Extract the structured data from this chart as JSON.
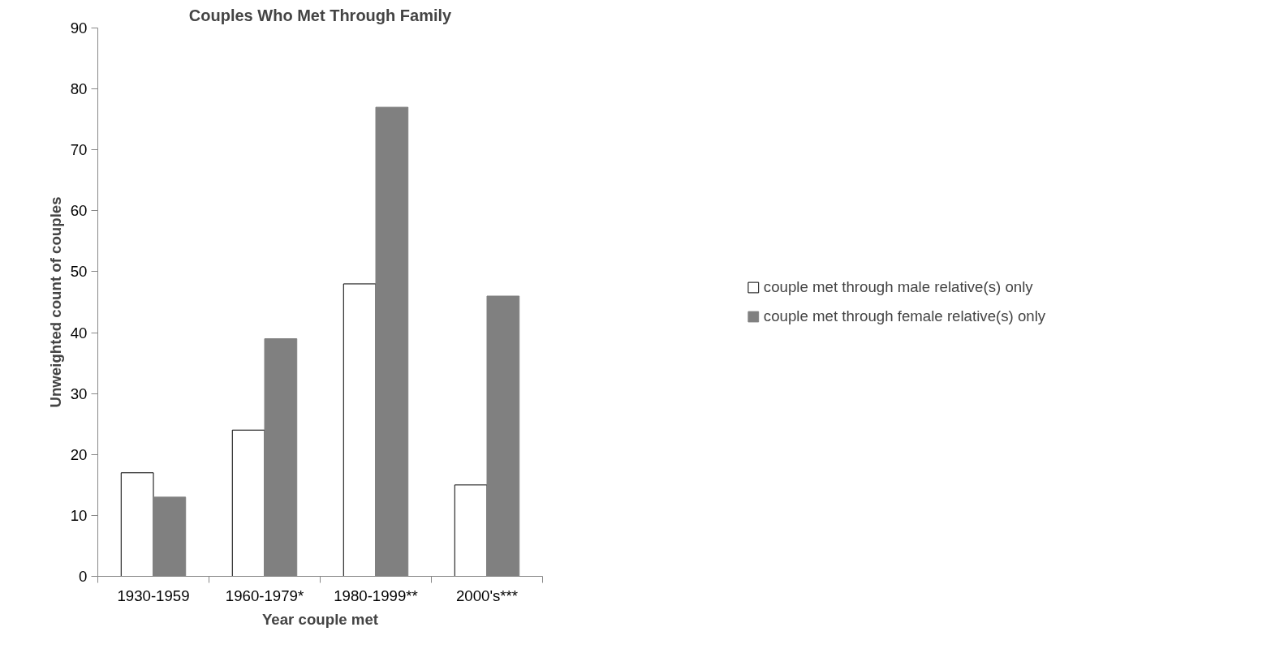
{
  "chart_data": {
    "type": "bar",
    "title": "Couples Who Met Through Family",
    "xlabel": "Year couple met",
    "ylabel": "Unweighted count of couples",
    "categories": [
      "1930-1959",
      "1960-1979*",
      "1980-1999**",
      "2000's***"
    ],
    "series": [
      {
        "name": "couple met through male relative(s) only",
        "color": "#ffffff",
        "values": [
          17,
          24,
          48,
          15
        ]
      },
      {
        "name": "couple met through female relative(s) only",
        "color": "#808080",
        "values": [
          13,
          39,
          77,
          46
        ]
      }
    ],
    "ylim": [
      0,
      90
    ],
    "yticks": [
      0,
      10,
      20,
      30,
      40,
      50,
      60,
      70,
      80,
      90
    ],
    "grid": false,
    "legend": "right"
  }
}
